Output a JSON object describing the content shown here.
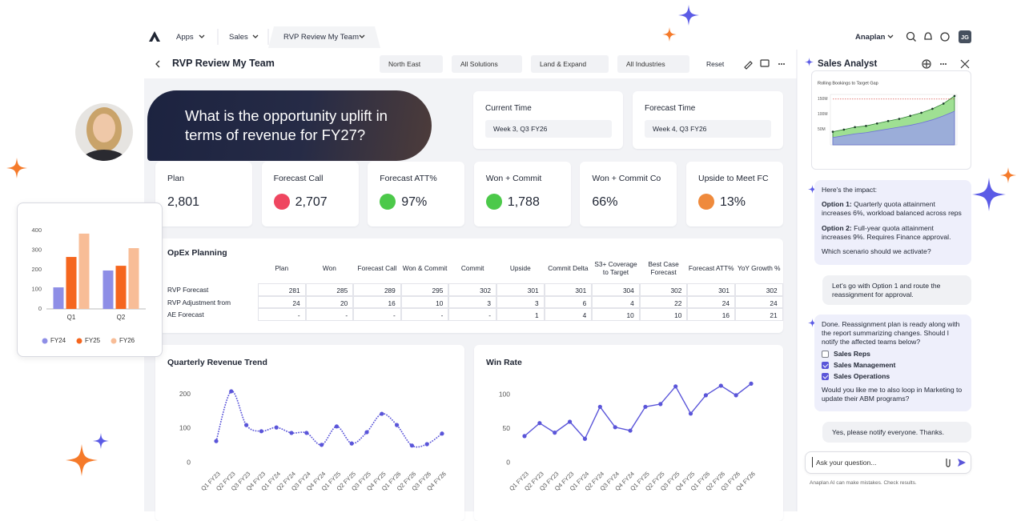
{
  "nav": {
    "items": [
      "Apps",
      "Sales",
      "RVP Review My Team"
    ],
    "org": "Anaplan",
    "initials": "JG"
  },
  "header": {
    "title": "RVP Review My Team",
    "filters": [
      "North East",
      "All Solutions",
      "Land & Expand",
      "All Industries"
    ],
    "reset": "Reset"
  },
  "question": "What is the opportunity uplift in terms of revenue for FY27?",
  "time": [
    {
      "label": "Current Time",
      "value": "Week 3, Q3 FY26"
    },
    {
      "label": "Forecast Time",
      "value": "Week 4, Q3 FY26"
    }
  ],
  "kpis": [
    {
      "label": "Plan",
      "value": "2,801"
    },
    {
      "label": "Forecast Call",
      "value": "2,707",
      "status": "#ef4660"
    },
    {
      "label": "Forecast ATT%",
      "value": "97%",
      "status": "#4cc94a"
    },
    {
      "label": "Won + Commit",
      "value": "1,788",
      "status": "#4cc94a"
    },
    {
      "label": "Won + Commit Co",
      "value": "66%"
    },
    {
      "label": "Upside to Meet FC",
      "value": "13%",
      "status": "#ef8a3c"
    }
  ],
  "opex": {
    "title": "OpEx Planning",
    "columns": [
      "Plan",
      "Won",
      "Forecast Call",
      "Won & Commit",
      "Commit",
      "Upside",
      "Commit Delta",
      "S3+ Coverage to Target",
      "Best Case Forecast",
      "Forecast ATT%",
      "YoY Growth %"
    ],
    "rows": [
      {
        "label": "RVP Forecast",
        "values": [
          281,
          285,
          289,
          295,
          302,
          301,
          301,
          304,
          302,
          301,
          302
        ]
      },
      {
        "label": "RVP Adjustment from",
        "values": [
          24,
          20,
          16,
          10,
          3,
          3,
          6,
          4,
          22,
          24,
          24
        ]
      },
      {
        "label": "AE Forecast",
        "values": [
          "-",
          "-",
          "-",
          "-",
          "-",
          1,
          4,
          10,
          10,
          16,
          21
        ]
      }
    ]
  },
  "chart_data": [
    {
      "type": "bar",
      "categories": [
        "Q1",
        "Q2"
      ],
      "series": [
        {
          "name": "FY24",
          "color": "#8e8ee6",
          "values": [
            110,
            196
          ]
        },
        {
          "name": "FY25",
          "color": "#f5661e",
          "values": [
            265,
            220
          ]
        },
        {
          "name": "FY26",
          "color": "#f8bd97",
          "values": [
            384,
            310
          ]
        }
      ],
      "ylim": [
        0,
        400
      ],
      "yticks": [
        0,
        100,
        200,
        300,
        400
      ],
      "grid": false,
      "legend": "bottom"
    },
    {
      "type": "area",
      "title": "Rolling Bookings to Target Gap",
      "target": 150,
      "target_color": "#d9534f",
      "series": [
        {
          "color": "#7fd66f",
          "values": [
            43,
            50,
            58,
            62,
            70,
            78,
            85,
            95,
            105,
            118,
            135,
            160
          ]
        },
        {
          "color": "#9a9cf0",
          "values": [
            24,
            30,
            36,
            40,
            46,
            52,
            58,
            64,
            72,
            82,
            95,
            110
          ]
        }
      ],
      "ylim": [
        0,
        165
      ],
      "yticks": [
        {
          "value": 50,
          "label": "50M"
        },
        {
          "value": 100,
          "label": "100M"
        },
        {
          "value": 150,
          "label": "150M"
        }
      ],
      "grid": false
    },
    {
      "type": "line",
      "title": "Quarterly Revenue Trend",
      "categories": [
        "Q1 FY23",
        "Q2 FY23",
        "Q3 FY23",
        "Q4 FY23",
        "Q1 FY24",
        "Q2 FY24",
        "Q3 FY24",
        "Q4 FY24",
        "Q1 FY25",
        "Q2 FY25",
        "Q3 FY25",
        "Q4 FY25",
        "Q1 FY26",
        "Q2 FY26",
        "Q3 FY26",
        "Q4 FY26"
      ],
      "series": [
        {
          "color": "#5a55d9",
          "values": [
            63,
            209,
            110,
            92,
            103,
            87,
            87,
            52,
            106,
            56,
            89,
            143,
            110,
            50,
            54,
            85
          ]
        }
      ],
      "ylim": [
        0,
        230
      ],
      "yticks": [
        0,
        100,
        200
      ],
      "grid": false,
      "smooth": true,
      "line_style": "dotted",
      "markers": true
    },
    {
      "type": "line",
      "title": "Win Rate",
      "categories": [
        "Q1 FY23",
        "Q2 FY23",
        "Q3 FY23",
        "Q4 FY23",
        "Q1 FY24",
        "Q2 FY24",
        "Q3 FY24",
        "Q4 FY24",
        "Q1 FY25",
        "Q2 FY25",
        "Q3 FY25",
        "Q4 FY25",
        "Q1 FY26",
        "Q2 FY26",
        "Q3 FY26",
        "Q4 FY26"
      ],
      "series": [
        {
          "color": "#5a55d9",
          "values": [
            39,
            58,
            44,
            60,
            35,
            82,
            52,
            47,
            82,
            86,
            112,
            72,
            99,
            113,
            99,
            116
          ]
        }
      ],
      "ylim": [
        0,
        120
      ],
      "yticks": [
        0,
        50,
        100
      ],
      "grid": false,
      "smooth": false,
      "line_style": "solid",
      "markers": true
    }
  ],
  "assistant": {
    "title": "Sales Analyst",
    "messages": [
      {
        "intro": "Here's the impact:",
        "options": [
          {
            "label": "Option 1:",
            "text": "Quarterly quota attainment increases 6%, workload balanced across reps"
          },
          {
            "label": "Option 2:",
            "text": "Full-year quota attainment increases 9%. Requires Finance approval."
          }
        ],
        "question": "Which scenario should we activate?"
      },
      {
        "text": "Let's go with Option 1 and route the reassignment for approval."
      },
      {
        "intro": "Done. Reassignment plan is ready along with the report summarizing changes. Should I notify the affected teams below?",
        "checks": [
          {
            "label": "Sales Reps",
            "checked": false
          },
          {
            "label": "Sales Management",
            "checked": true
          },
          {
            "label": "Sales Operations",
            "checked": true
          }
        ],
        "question": "Would you like me to also loop in Marketing to update their ABM programs?"
      },
      {
        "text": "Yes, please notify everyone. Thanks."
      }
    ],
    "placeholder": "Ask your question...",
    "disclaimer": "Anaplan AI can make mistakes. Check results."
  }
}
